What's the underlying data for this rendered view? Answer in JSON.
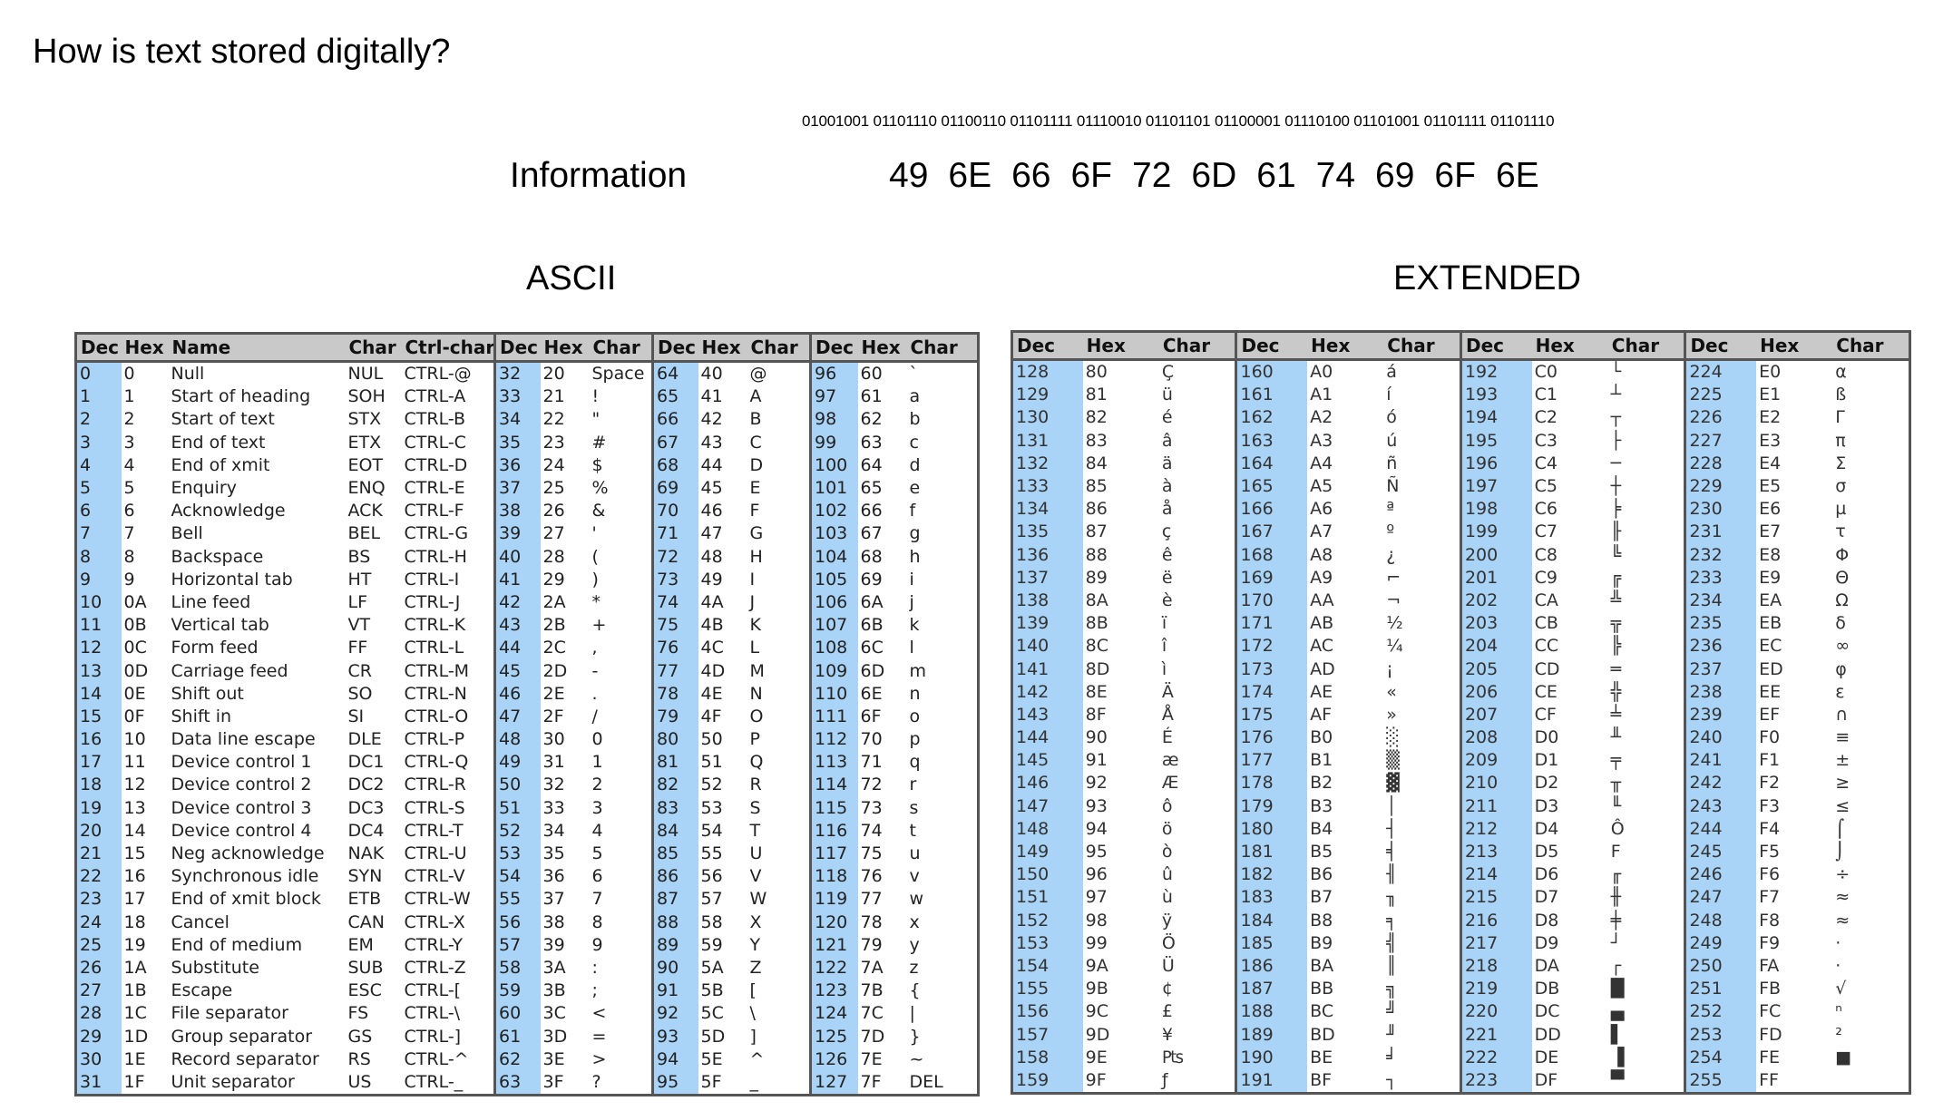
{
  "title": "How is text stored digitally?",
  "binary": "01001001 01101110 01100110 01101111 01110010 01101101 01100001 01110100 01101001 01101111 01101110",
  "word": "Information",
  "hex_bytes": [
    "49",
    "6E",
    "66",
    "6F",
    "72",
    "6D",
    "61",
    "74",
    "69",
    "6F",
    "6E"
  ],
  "ascii_label": "ASCII",
  "extended_label": "EXTENDED",
  "ascii_table": {
    "headers": [
      "Dec",
      "Hex",
      "Name",
      "Char",
      "Ctrl-char",
      "Dec",
      "Hex",
      "Char",
      "Dec",
      "Hex",
      "Char",
      "Dec",
      "Hex",
      "Char"
    ],
    "rows": [
      [
        "0",
        "0",
        "Null",
        "NUL",
        "CTRL-@",
        "32",
        "20",
        "Space",
        "64",
        "40",
        "@",
        "96",
        "60",
        "`"
      ],
      [
        "1",
        "1",
        "Start of heading",
        "SOH",
        "CTRL-A",
        "33",
        "21",
        "!",
        "65",
        "41",
        "A",
        "97",
        "61",
        "a"
      ],
      [
        "2",
        "2",
        "Start of text",
        "STX",
        "CTRL-B",
        "34",
        "22",
        "\"",
        "66",
        "42",
        "B",
        "98",
        "62",
        "b"
      ],
      [
        "3",
        "3",
        "End of text",
        "ETX",
        "CTRL-C",
        "35",
        "23",
        "#",
        "67",
        "43",
        "C",
        "99",
        "63",
        "c"
      ],
      [
        "4",
        "4",
        "End of xmit",
        "EOT",
        "CTRL-D",
        "36",
        "24",
        "$",
        "68",
        "44",
        "D",
        "100",
        "64",
        "d"
      ],
      [
        "5",
        "5",
        "Enquiry",
        "ENQ",
        "CTRL-E",
        "37",
        "25",
        "%",
        "69",
        "45",
        "E",
        "101",
        "65",
        "e"
      ],
      [
        "6",
        "6",
        "Acknowledge",
        "ACK",
        "CTRL-F",
        "38",
        "26",
        "&",
        "70",
        "46",
        "F",
        "102",
        "66",
        "f"
      ],
      [
        "7",
        "7",
        "Bell",
        "BEL",
        "CTRL-G",
        "39",
        "27",
        "'",
        "71",
        "47",
        "G",
        "103",
        "67",
        "g"
      ],
      [
        "8",
        "8",
        "Backspace",
        "BS",
        "CTRL-H",
        "40",
        "28",
        "(",
        "72",
        "48",
        "H",
        "104",
        "68",
        "h"
      ],
      [
        "9",
        "9",
        "Horizontal tab",
        "HT",
        "CTRL-I",
        "41",
        "29",
        ")",
        "73",
        "49",
        "I",
        "105",
        "69",
        "i"
      ],
      [
        "10",
        "0A",
        "Line feed",
        "LF",
        "CTRL-J",
        "42",
        "2A",
        "*",
        "74",
        "4A",
        "J",
        "106",
        "6A",
        "j"
      ],
      [
        "11",
        "0B",
        "Vertical tab",
        "VT",
        "CTRL-K",
        "43",
        "2B",
        "+",
        "75",
        "4B",
        "K",
        "107",
        "6B",
        "k"
      ],
      [
        "12",
        "0C",
        "Form feed",
        "FF",
        "CTRL-L",
        "44",
        "2C",
        ",",
        "76",
        "4C",
        "L",
        "108",
        "6C",
        "l"
      ],
      [
        "13",
        "0D",
        "Carriage feed",
        "CR",
        "CTRL-M",
        "45",
        "2D",
        "-",
        "77",
        "4D",
        "M",
        "109",
        "6D",
        "m"
      ],
      [
        "14",
        "0E",
        "Shift out",
        "SO",
        "CTRL-N",
        "46",
        "2E",
        ".",
        "78",
        "4E",
        "N",
        "110",
        "6E",
        "n"
      ],
      [
        "15",
        "0F",
        "Shift in",
        "SI",
        "CTRL-O",
        "47",
        "2F",
        "/",
        "79",
        "4F",
        "O",
        "111",
        "6F",
        "o"
      ],
      [
        "16",
        "10",
        "Data line escape",
        "DLE",
        "CTRL-P",
        "48",
        "30",
        "0",
        "80",
        "50",
        "P",
        "112",
        "70",
        "p"
      ],
      [
        "17",
        "11",
        "Device control 1",
        "DC1",
        "CTRL-Q",
        "49",
        "31",
        "1",
        "81",
        "51",
        "Q",
        "113",
        "71",
        "q"
      ],
      [
        "18",
        "12",
        "Device control 2",
        "DC2",
        "CTRL-R",
        "50",
        "32",
        "2",
        "82",
        "52",
        "R",
        "114",
        "72",
        "r"
      ],
      [
        "19",
        "13",
        "Device control 3",
        "DC3",
        "CTRL-S",
        "51",
        "33",
        "3",
        "83",
        "53",
        "S",
        "115",
        "73",
        "s"
      ],
      [
        "20",
        "14",
        "Device control 4",
        "DC4",
        "CTRL-T",
        "52",
        "34",
        "4",
        "84",
        "54",
        "T",
        "116",
        "74",
        "t"
      ],
      [
        "21",
        "15",
        "Neg acknowledge",
        "NAK",
        "CTRL-U",
        "53",
        "35",
        "5",
        "85",
        "55",
        "U",
        "117",
        "75",
        "u"
      ],
      [
        "22",
        "16",
        "Synchronous idle",
        "SYN",
        "CTRL-V",
        "54",
        "36",
        "6",
        "86",
        "56",
        "V",
        "118",
        "76",
        "v"
      ],
      [
        "23",
        "17",
        "End of xmit block",
        "ETB",
        "CTRL-W",
        "55",
        "37",
        "7",
        "87",
        "57",
        "W",
        "119",
        "77",
        "w"
      ],
      [
        "24",
        "18",
        "Cancel",
        "CAN",
        "CTRL-X",
        "56",
        "38",
        "8",
        "88",
        "58",
        "X",
        "120",
        "78",
        "x"
      ],
      [
        "25",
        "19",
        "End of medium",
        "EM",
        "CTRL-Y",
        "57",
        "39",
        "9",
        "89",
        "59",
        "Y",
        "121",
        "79",
        "y"
      ],
      [
        "26",
        "1A",
        "Substitute",
        "SUB",
        "CTRL-Z",
        "58",
        "3A",
        ":",
        "90",
        "5A",
        "Z",
        "122",
        "7A",
        "z"
      ],
      [
        "27",
        "1B",
        "Escape",
        "ESC",
        "CTRL-[",
        "59",
        "3B",
        ";",
        "91",
        "5B",
        "[",
        "123",
        "7B",
        "{"
      ],
      [
        "28",
        "1C",
        "File separator",
        "FS",
        "CTRL-\\",
        "60",
        "3C",
        "<",
        "92",
        "5C",
        "\\",
        "124",
        "7C",
        "|"
      ],
      [
        "29",
        "1D",
        "Group separator",
        "GS",
        "CTRL-]",
        "61",
        "3D",
        "=",
        "93",
        "5D",
        "]",
        "125",
        "7D",
        "}"
      ],
      [
        "30",
        "1E",
        "Record separator",
        "RS",
        "CTRL-^",
        "62",
        "3E",
        ">",
        "94",
        "5E",
        "^",
        "126",
        "7E",
        "~"
      ],
      [
        "31",
        "1F",
        "Unit separator",
        "US",
        "CTRL-_",
        "63",
        "3F",
        "?",
        "95",
        "5F",
        "_",
        "127",
        "7F",
        "DEL"
      ]
    ]
  },
  "extended_table": {
    "headers": [
      "Dec",
      "Hex",
      "Char",
      "Dec",
      "Hex",
      "Char",
      "Dec",
      "Hex",
      "Char",
      "Dec",
      "Hex",
      "Char"
    ],
    "rows": [
      [
        "128",
        "80",
        "Ç",
        "160",
        "A0",
        "á",
        "192",
        "C0",
        "└",
        "224",
        "E0",
        "α"
      ],
      [
        "129",
        "81",
        "ü",
        "161",
        "A1",
        "í",
        "193",
        "C1",
        "┴",
        "225",
        "E1",
        "ß"
      ],
      [
        "130",
        "82",
        "é",
        "162",
        "A2",
        "ó",
        "194",
        "C2",
        "┬",
        "226",
        "E2",
        "Γ"
      ],
      [
        "131",
        "83",
        "â",
        "163",
        "A3",
        "ú",
        "195",
        "C3",
        "├",
        "227",
        "E3",
        "π"
      ],
      [
        "132",
        "84",
        "ä",
        "164",
        "A4",
        "ñ",
        "196",
        "C4",
        "─",
        "228",
        "E4",
        "Σ"
      ],
      [
        "133",
        "85",
        "à",
        "165",
        "A5",
        "Ñ",
        "197",
        "C5",
        "┼",
        "229",
        "E5",
        "σ"
      ],
      [
        "134",
        "86",
        "å",
        "166",
        "A6",
        "ª",
        "198",
        "C6",
        "╞",
        "230",
        "E6",
        "µ"
      ],
      [
        "135",
        "87",
        "ç",
        "167",
        "A7",
        "º",
        "199",
        "C7",
        "╟",
        "231",
        "E7",
        "τ"
      ],
      [
        "136",
        "88",
        "ê",
        "168",
        "A8",
        "¿",
        "200",
        "C8",
        "╚",
        "232",
        "E8",
        "Φ"
      ],
      [
        "137",
        "89",
        "ë",
        "169",
        "A9",
        "⌐",
        "201",
        "C9",
        "╔",
        "233",
        "E9",
        "Θ"
      ],
      [
        "138",
        "8A",
        "è",
        "170",
        "AA",
        "¬",
        "202",
        "CA",
        "╩",
        "234",
        "EA",
        "Ω"
      ],
      [
        "139",
        "8B",
        "ï",
        "171",
        "AB",
        "½",
        "203",
        "CB",
        "╦",
        "235",
        "EB",
        "δ"
      ],
      [
        "140",
        "8C",
        "î",
        "172",
        "AC",
        "¼",
        "204",
        "CC",
        "╠",
        "236",
        "EC",
        "∞"
      ],
      [
        "141",
        "8D",
        "ì",
        "173",
        "AD",
        "¡",
        "205",
        "CD",
        "═",
        "237",
        "ED",
        "φ"
      ],
      [
        "142",
        "8E",
        "Ä",
        "174",
        "AE",
        "«",
        "206",
        "CE",
        "╬",
        "238",
        "EE",
        "ε"
      ],
      [
        "143",
        "8F",
        "Å",
        "175",
        "AF",
        "»",
        "207",
        "CF",
        "╧",
        "239",
        "EF",
        "∩"
      ],
      [
        "144",
        "90",
        "É",
        "176",
        "B0",
        "░",
        "208",
        "D0",
        "╨",
        "240",
        "F0",
        "≡"
      ],
      [
        "145",
        "91",
        "æ",
        "177",
        "B1",
        "▒",
        "209",
        "D1",
        "╤",
        "241",
        "F1",
        "±"
      ],
      [
        "146",
        "92",
        "Æ",
        "178",
        "B2",
        "▓",
        "210",
        "D2",
        "╥",
        "242",
        "F2",
        "≥"
      ],
      [
        "147",
        "93",
        "ô",
        "179",
        "B3",
        "│",
        "211",
        "D3",
        "╙",
        "243",
        "F3",
        "≤"
      ],
      [
        "148",
        "94",
        "ö",
        "180",
        "B4",
        "┤",
        "212",
        "D4",
        "Ô",
        "244",
        "F4",
        "⌠"
      ],
      [
        "149",
        "95",
        "ò",
        "181",
        "B5",
        "╡",
        "213",
        "D5",
        "F",
        "245",
        "F5",
        "⌡"
      ],
      [
        "150",
        "96",
        "û",
        "182",
        "B6",
        "╢",
        "214",
        "D6",
        "╓",
        "246",
        "F6",
        "÷"
      ],
      [
        "151",
        "97",
        "ù",
        "183",
        "B7",
        "╖",
        "215",
        "D7",
        "╫",
        "247",
        "F7",
        "≈"
      ],
      [
        "152",
        "98",
        "ÿ",
        "184",
        "B8",
        "╕",
        "216",
        "D8",
        "╪",
        "248",
        "F8",
        "≈"
      ],
      [
        "153",
        "99",
        "Ö",
        "185",
        "B9",
        "╣",
        "217",
        "D9",
        "┘",
        "249",
        "F9",
        "·"
      ],
      [
        "154",
        "9A",
        "Ü",
        "186",
        "BA",
        "║",
        "218",
        "DA",
        "┌",
        "250",
        "FA",
        "·"
      ],
      [
        "155",
        "9B",
        "¢",
        "187",
        "BB",
        "╗",
        "219",
        "DB",
        "█",
        "251",
        "FB",
        "√"
      ],
      [
        "156",
        "9C",
        "£",
        "188",
        "BC",
        "╝",
        "220",
        "DC",
        "▄",
        "252",
        "FC",
        "ⁿ"
      ],
      [
        "157",
        "9D",
        "¥",
        "189",
        "BD",
        "╜",
        "221",
        "DD",
        "▌",
        "253",
        "FD",
        "²"
      ],
      [
        "158",
        "9E",
        "₧",
        "190",
        "BE",
        "╛",
        "222",
        "DE",
        "▐",
        "254",
        "FE",
        "■"
      ],
      [
        "159",
        "9F",
        "ƒ",
        "191",
        "BF",
        "┐",
        "223",
        "DF",
        "▀",
        "255",
        "FF",
        ""
      ]
    ]
  }
}
